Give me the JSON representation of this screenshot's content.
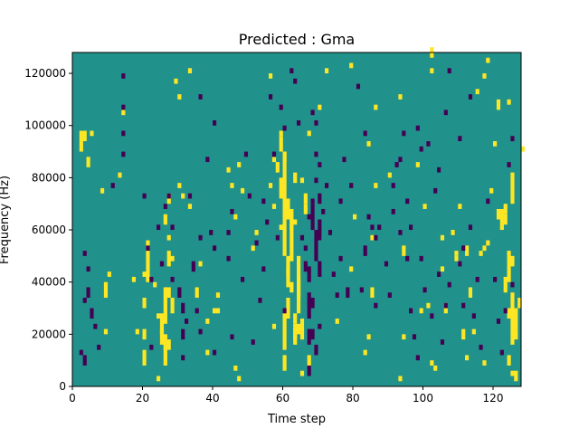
{
  "chart_data": {
    "type": "heatmap",
    "title": "Predicted : Gma",
    "xlabel": "Time step",
    "ylabel": "Frequency (Hz)",
    "xlim": [
      0,
      128
    ],
    "ylim": [
      0,
      128000
    ],
    "x_ticks": [
      0,
      20,
      40,
      60,
      80,
      100,
      120
    ],
    "x_tick_labels": [
      "0",
      "20",
      "40",
      "60",
      "80",
      "100",
      "120"
    ],
    "y_ticks": [
      0,
      20000,
      40000,
      60000,
      80000,
      100000,
      120000
    ],
    "y_tick_labels": [
      "0",
      "20000",
      "40000",
      "60000",
      "80000",
      "100000",
      "120000"
    ],
    "colormap": "viridis",
    "levels": {
      "low": -1,
      "mid": 0,
      "high": 1
    },
    "colors": {
      "low": "#440154",
      "mid": "#21918c",
      "high": "#fde725"
    },
    "grid": false,
    "background_value": 0,
    "cell_width_steps": 1,
    "cell_height_hz": 2000,
    "high_cells": [
      [
        2,
        90000,
        8000
      ],
      [
        3,
        94000,
        4000
      ],
      [
        5,
        96000,
        2000
      ],
      [
        4,
        84000,
        4000
      ],
      [
        8,
        74000,
        2000
      ],
      [
        9,
        20000,
        2000
      ],
      [
        9,
        34000,
        6000
      ],
      [
        10,
        42000,
        2000
      ],
      [
        13,
        80000,
        2000
      ],
      [
        14,
        104000,
        2000
      ],
      [
        17,
        40000,
        2000
      ],
      [
        18,
        20000,
        2000
      ],
      [
        20,
        30000,
        4000
      ],
      [
        20,
        8000,
        6000
      ],
      [
        20,
        42000,
        2000
      ],
      [
        21,
        40000,
        2000
      ],
      [
        20,
        18000,
        4000
      ],
      [
        21,
        40000,
        16000
      ],
      [
        23,
        38000,
        2000
      ],
      [
        24,
        26000,
        2000
      ],
      [
        24,
        2000,
        2000
      ],
      [
        25,
        20000,
        8000
      ],
      [
        25,
        16000,
        6000
      ],
      [
        26,
        24000,
        14000
      ],
      [
        26,
        14000,
        6000
      ],
      [
        26,
        8000,
        8000
      ],
      [
        27,
        34000,
        4000
      ],
      [
        27,
        46000,
        6000
      ],
      [
        28,
        28000,
        6000
      ],
      [
        26,
        62000,
        4000
      ],
      [
        27,
        70000,
        4000
      ],
      [
        27,
        56000,
        2000
      ],
      [
        28,
        48000,
        2000
      ],
      [
        27,
        14000,
        4000
      ],
      [
        30,
        76000,
        2000
      ],
      [
        31,
        72000,
        2000
      ],
      [
        33,
        68000,
        2000
      ],
      [
        35,
        34000,
        4000
      ],
      [
        38,
        24000,
        2000
      ],
      [
        36,
        46000,
        2000
      ],
      [
        38,
        12000,
        2000
      ],
      [
        40,
        28000,
        2000
      ],
      [
        41,
        28000,
        2000
      ],
      [
        41,
        34000,
        2000
      ],
      [
        46,
        64000,
        2000
      ],
      [
        46,
        6000,
        2000
      ],
      [
        47,
        2000,
        2000
      ],
      [
        45,
        76000,
        2000
      ],
      [
        47,
        84000,
        2000
      ],
      [
        48,
        74000,
        2000
      ],
      [
        51,
        52000,
        2000
      ],
      [
        52,
        58000,
        2000
      ],
      [
        56,
        76000,
        2000
      ],
      [
        57,
        68000,
        2000
      ],
      [
        57,
        22000,
        2000
      ],
      [
        59,
        60000,
        2000
      ],
      [
        59,
        72000,
        8000
      ],
      [
        60,
        6000,
        6000
      ],
      [
        60,
        50000,
        40000
      ],
      [
        60,
        14000,
        16000
      ],
      [
        61,
        26000,
        8000
      ],
      [
        61,
        42000,
        4000
      ],
      [
        62,
        48000,
        16000
      ],
      [
        62,
        60000,
        8000
      ],
      [
        63,
        62000,
        2000
      ],
      [
        63,
        78000,
        4000
      ],
      [
        63,
        18000,
        6000
      ],
      [
        63,
        24000,
        4000
      ],
      [
        64,
        28000,
        14000
      ],
      [
        64,
        34000,
        16000
      ],
      [
        65,
        18000,
        8000
      ],
      [
        65,
        78000,
        2000
      ],
      [
        66,
        70000,
        4000
      ],
      [
        66,
        66000,
        4000
      ],
      [
        67,
        8000,
        4000
      ],
      [
        59,
        90000,
        6000
      ],
      [
        59,
        96000,
        2000
      ],
      [
        60,
        86000,
        4000
      ],
      [
        61,
        64000,
        8000
      ],
      [
        61,
        38000,
        12000
      ],
      [
        62,
        36000,
        4000
      ],
      [
        63,
        16000,
        6000
      ],
      [
        64,
        20000,
        4000
      ],
      [
        65,
        4000,
        2000
      ],
      [
        67,
        96000,
        2000
      ],
      [
        70,
        56000,
        2000
      ],
      [
        70,
        106000,
        2000
      ],
      [
        72,
        120000,
        2000
      ],
      [
        75,
        24000,
        2000
      ],
      [
        79,
        122000,
        2000
      ],
      [
        79,
        44000,
        2000
      ],
      [
        80,
        64000,
        2000
      ],
      [
        83,
        12000,
        2000
      ],
      [
        84,
        18000,
        2000
      ],
      [
        85,
        56000,
        2000
      ],
      [
        84,
        92000,
        2000
      ],
      [
        85,
        34000,
        4000
      ],
      [
        86,
        76000,
        2000
      ],
      [
        86,
        106000,
        2000
      ],
      [
        90,
        80000,
        2000
      ],
      [
        94,
        50000,
        4000
      ],
      [
        93,
        2000,
        2000
      ],
      [
        93,
        110000,
        2000
      ],
      [
        94,
        18000,
        2000
      ],
      [
        98,
        84000,
        2000
      ],
      [
        99,
        28000,
        2000
      ],
      [
        100,
        68000,
        2000
      ],
      [
        101,
        30000,
        2000
      ],
      [
        102,
        8000,
        2000
      ],
      [
        102,
        120000,
        2000
      ],
      [
        103,
        6000,
        2000
      ],
      [
        106,
        28000,
        4000
      ],
      [
        105,
        44000,
        2000
      ],
      [
        105,
        56000,
        2000
      ],
      [
        109,
        48000,
        2000
      ],
      [
        108,
        58000,
        2000
      ],
      [
        109,
        50000,
        2000
      ],
      [
        110,
        68000,
        2000
      ],
      [
        111,
        18000,
        4000
      ],
      [
        112,
        10000,
        2000
      ],
      [
        112,
        50000,
        4000
      ],
      [
        114,
        20000,
        2000
      ],
      [
        113,
        34000,
        4000
      ],
      [
        116,
        50000,
        2000
      ],
      [
        117,
        52000,
        2000
      ],
      [
        117,
        8000,
        2000
      ],
      [
        118,
        54000,
        2000
      ],
      [
        119,
        74000,
        2000
      ],
      [
        121,
        64000,
        4000
      ],
      [
        122,
        60000,
        8000
      ],
      [
        123,
        66000,
        4000
      ],
      [
        123,
        36000,
        6000
      ],
      [
        123,
        62000,
        4000
      ],
      [
        124,
        40000,
        12000
      ],
      [
        124,
        26000,
        4000
      ],
      [
        125,
        46000,
        4000
      ],
      [
        125,
        70000,
        12000
      ],
      [
        126,
        2000,
        4000
      ],
      [
        127,
        30000,
        4000
      ],
      [
        124,
        8000,
        4000
      ],
      [
        125,
        4000,
        2000
      ],
      [
        126,
        18000,
        4000
      ],
      [
        125,
        16000,
        20000
      ],
      [
        126,
        22000,
        8000
      ],
      [
        120,
        92000,
        2000
      ],
      [
        121,
        106000,
        4000
      ],
      [
        124,
        108000,
        2000
      ],
      [
        115,
        112000,
        2000
      ],
      [
        117,
        118000,
        2000
      ],
      [
        118,
        124000,
        2000
      ],
      [
        128,
        90000,
        2000
      ],
      [
        102,
        126000,
        4000
      ],
      [
        57,
        86000,
        2000
      ],
      [
        58,
        82000,
        4000
      ],
      [
        33,
        120000,
        2000
      ],
      [
        30,
        110000,
        2000
      ],
      [
        29,
        116000,
        2000
      ],
      [
        56,
        118000,
        2000
      ],
      [
        44,
        82000,
        2000
      ]
    ],
    "low_cells": [
      [
        2,
        12000,
        2000
      ],
      [
        3,
        8000,
        4000
      ],
      [
        4,
        44000,
        2000
      ],
      [
        4,
        34000,
        4000
      ],
      [
        5,
        26000,
        4000
      ],
      [
        6,
        22000,
        2000
      ],
      [
        7,
        14000,
        2000
      ],
      [
        3,
        32000,
        2000
      ],
      [
        3,
        50000,
        2000
      ],
      [
        11,
        76000,
        2000
      ],
      [
        14,
        118000,
        2000
      ],
      [
        14,
        106000,
        2000
      ],
      [
        14,
        96000,
        2000
      ],
      [
        14,
        88000,
        2000
      ],
      [
        20,
        72000,
        2000
      ],
      [
        21,
        52000,
        2000
      ],
      [
        22,
        14000,
        2000
      ],
      [
        22,
        40000,
        2000
      ],
      [
        24,
        60000,
        2000
      ],
      [
        25,
        46000,
        2000
      ],
      [
        26,
        68000,
        2000
      ],
      [
        28,
        40000,
        2000
      ],
      [
        27,
        72000,
        2000
      ],
      [
        28,
        60000,
        2000
      ],
      [
        30,
        34000,
        4000
      ],
      [
        31,
        28000,
        4000
      ],
      [
        32,
        24000,
        2000
      ],
      [
        31,
        18000,
        4000
      ],
      [
        31,
        10000,
        2000
      ],
      [
        33,
        72000,
        2000
      ],
      [
        34,
        44000,
        4000
      ],
      [
        35,
        28000,
        2000
      ],
      [
        36,
        20000,
        2000
      ],
      [
        36,
        110000,
        2000
      ],
      [
        38,
        86000,
        2000
      ],
      [
        39,
        58000,
        2000
      ],
      [
        40,
        52000,
        2000
      ],
      [
        40,
        12000,
        2000
      ],
      [
        44,
        48000,
        2000
      ],
      [
        45,
        18000,
        2000
      ],
      [
        48,
        40000,
        2000
      ],
      [
        49,
        88000,
        2000
      ],
      [
        50,
        72000,
        2000
      ],
      [
        51,
        16000,
        2000
      ],
      [
        52,
        54000,
        2000
      ],
      [
        53,
        32000,
        2000
      ],
      [
        54,
        44000,
        2000
      ],
      [
        55,
        62000,
        2000
      ],
      [
        57,
        88000,
        2000
      ],
      [
        58,
        56000,
        2000
      ],
      [
        59,
        106000,
        2000
      ],
      [
        60,
        98000,
        2000
      ],
      [
        62,
        120000,
        2000
      ],
      [
        63,
        116000,
        2000
      ],
      [
        65,
        56000,
        2000
      ],
      [
        66,
        52000,
        2000
      ],
      [
        67,
        64000,
        2000
      ],
      [
        66,
        44000,
        4000
      ],
      [
        67,
        40000,
        6000
      ],
      [
        67,
        26000,
        10000
      ],
      [
        67,
        16000,
        6000
      ],
      [
        68,
        70000,
        2000
      ],
      [
        68,
        60000,
        10000
      ],
      [
        69,
        48000,
        12000
      ],
      [
        68,
        30000,
        4000
      ],
      [
        68,
        18000,
        4000
      ],
      [
        69,
        12000,
        4000
      ],
      [
        67,
        4000,
        4000
      ],
      [
        69,
        78000,
        2000
      ],
      [
        69,
        88000,
        2000
      ],
      [
        69,
        100000,
        2000
      ],
      [
        70,
        84000,
        2000
      ],
      [
        70,
        70000,
        4000
      ],
      [
        70,
        56000,
        8000
      ],
      [
        70,
        42000,
        6000
      ],
      [
        70,
        22000,
        2000
      ],
      [
        71,
        66000,
        2000
      ],
      [
        72,
        76000,
        2000
      ],
      [
        73,
        58000,
        2000
      ],
      [
        74,
        42000,
        2000
      ],
      [
        75,
        34000,
        2000
      ],
      [
        76,
        48000,
        2000
      ],
      [
        76,
        70000,
        2000
      ],
      [
        77,
        86000,
        2000
      ],
      [
        78,
        34000,
        4000
      ],
      [
        79,
        76000,
        2000
      ],
      [
        81,
        114000,
        2000
      ],
      [
        82,
        36000,
        2000
      ],
      [
        83,
        50000,
        4000
      ],
      [
        84,
        64000,
        2000
      ],
      [
        87,
        60000,
        2000
      ],
      [
        89,
        46000,
        2000
      ],
      [
        90,
        34000,
        2000
      ],
      [
        91,
        66000,
        2000
      ],
      [
        93,
        58000,
        2000
      ],
      [
        95,
        48000,
        2000
      ],
      [
        96,
        60000,
        2000
      ],
      [
        96,
        28000,
        2000
      ],
      [
        97,
        18000,
        2000
      ],
      [
        98,
        10000,
        2000
      ],
      [
        99,
        48000,
        2000
      ],
      [
        100,
        36000,
        2000
      ],
      [
        102,
        26000,
        2000
      ],
      [
        104,
        42000,
        2000
      ],
      [
        105,
        16000,
        2000
      ],
      [
        106,
        30000,
        2000
      ],
      [
        107,
        38000,
        2000
      ],
      [
        107,
        120000,
        2000
      ],
      [
        103,
        74000,
        2000
      ],
      [
        104,
        82000,
        2000
      ],
      [
        99,
        90000,
        2000
      ],
      [
        94,
        96000,
        2000
      ],
      [
        92,
        84000,
        2000
      ],
      [
        110,
        46000,
        2000
      ],
      [
        110,
        94000,
        2000
      ],
      [
        111,
        52000,
        2000
      ],
      [
        113,
        60000,
        2000
      ],
      [
        114,
        26000,
        2000
      ],
      [
        115,
        40000,
        2000
      ],
      [
        116,
        14000,
        2000
      ],
      [
        118,
        70000,
        2000
      ],
      [
        120,
        40000,
        2000
      ],
      [
        121,
        24000,
        2000
      ],
      [
        122,
        12000,
        2000
      ],
      [
        123,
        28000,
        2000
      ],
      [
        124,
        84000,
        2000
      ],
      [
        125,
        94000,
        2000
      ],
      [
        111,
        30000,
        2000
      ],
      [
        125,
        38000,
        2000
      ],
      [
        106,
        104000,
        2000
      ],
      [
        113,
        110000,
        2000
      ],
      [
        93,
        86000,
        2000
      ],
      [
        60,
        28000,
        2000
      ],
      [
        64,
        100000,
        2000
      ],
      [
        68,
        104000,
        2000
      ],
      [
        56,
        110000,
        2000
      ],
      [
        44,
        58000,
        2000
      ],
      [
        45,
        66000,
        2000
      ],
      [
        54,
        70000,
        2000
      ],
      [
        36,
        56000,
        2000
      ],
      [
        40,
        100000,
        2000
      ],
      [
        98,
        98000,
        2000
      ],
      [
        83,
        96000,
        2000
      ],
      [
        91,
        76000,
        2000
      ],
      [
        95,
        70000,
        2000
      ],
      [
        86,
        30000,
        2000
      ],
      [
        101,
        92000,
        2000
      ],
      [
        85,
        60000,
        2000
      ],
      [
        86,
        56000,
        2000
      ]
    ]
  }
}
